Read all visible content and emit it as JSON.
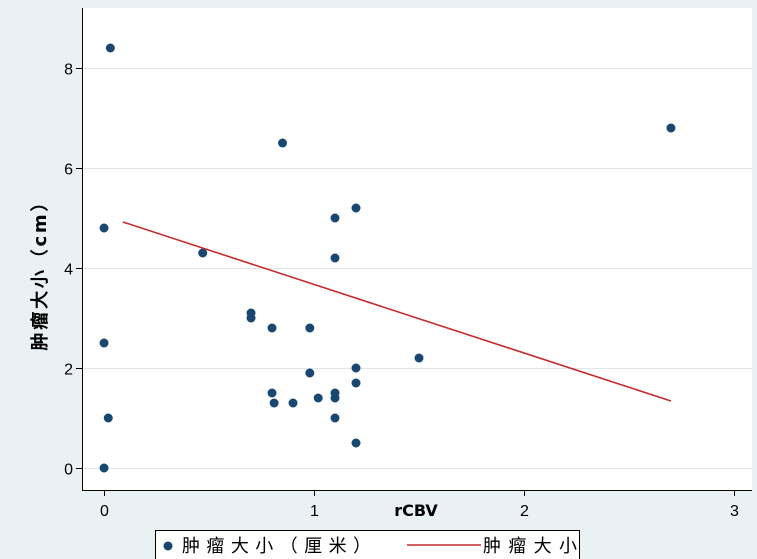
{
  "chart_data": {
    "type": "scatter",
    "xlabel": "rCBV",
    "ylabel": "肿瘤大小（cm）",
    "xlim": [
      -0.105,
      3.086
    ],
    "ylim": [
      -0.44,
      9.2
    ],
    "xticks": [
      0,
      1,
      2,
      3
    ],
    "yticks": [
      0,
      2,
      4,
      6,
      8
    ],
    "grid": "horizontal",
    "legend_position": "bottom",
    "series": [
      {
        "name": "肿瘤大小（厘米）",
        "type": "scatter",
        "color": "#1a476f",
        "x": [
          0.03,
          0,
          0,
          0.02,
          0,
          0.47,
          0.7,
          0.7,
          0.8,
          0.8,
          0.81,
          0.85,
          0.9,
          0.98,
          0.98,
          1.02,
          1.1,
          1.1,
          1.1,
          1.1,
          1.1,
          1.2,
          1.2,
          1.2,
          1.2,
          1.5,
          2.7
        ],
        "y": [
          8.4,
          4.8,
          2.5,
          1.0,
          0,
          4.3,
          3.1,
          3.0,
          2.8,
          1.5,
          1.3,
          6.5,
          1.3,
          2.8,
          1.9,
          1.4,
          5.0,
          4.2,
          1.5,
          1.4,
          1.0,
          5.2,
          2.0,
          1.7,
          0.5,
          2.2,
          6.8
        ]
      },
      {
        "name": "肿瘤大小",
        "type": "line",
        "color": "#c62d2d",
        "x": [
          0.09,
          2.7
        ],
        "y": [
          4.92,
          1.34
        ]
      }
    ]
  },
  "colors": {
    "background": "#eaf1f4",
    "plot_background": "#ffffff",
    "gridline": "#dfe5e8",
    "axis": "#000000"
  }
}
